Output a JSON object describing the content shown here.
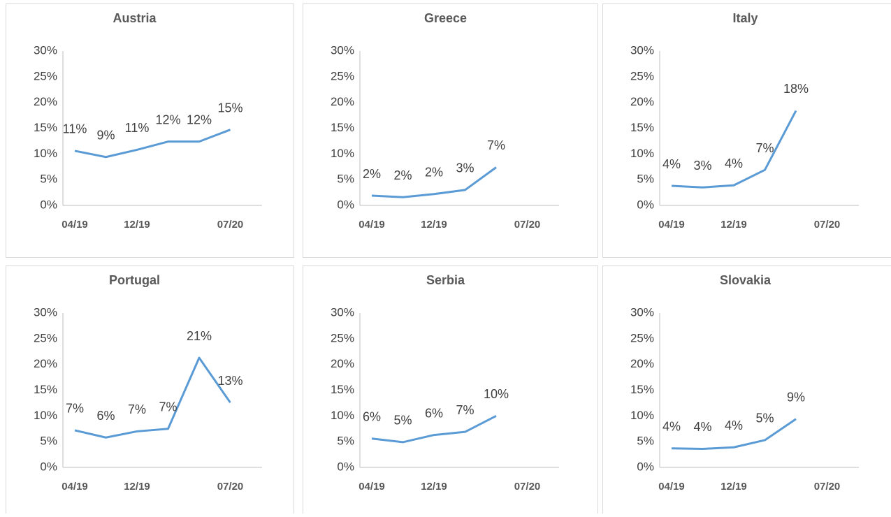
{
  "chart_data": [
    {
      "type": "line",
      "title": "Austria",
      "categories": [
        "04/19",
        null,
        "12/19",
        null,
        null,
        "07/20"
      ],
      "series": [
        {
          "color": "#5b9bd5",
          "values": [
            10.6,
            9.4,
            10.8,
            12.4,
            12.4,
            14.7
          ],
          "value_labels": [
            "11%",
            "9%",
            "11%",
            "12%",
            "12%",
            "15%"
          ]
        }
      ],
      "ylim": [
        0,
        30
      ],
      "yticks": [
        {
          "value": 0,
          "label": "0%"
        },
        {
          "value": 5,
          "label": "5%"
        },
        {
          "value": 10,
          "label": "10%"
        },
        {
          "value": 15,
          "label": "15%"
        },
        {
          "value": 20,
          "label": "20%"
        },
        {
          "value": 25,
          "label": "25%"
        },
        {
          "value": 30,
          "label": "30%"
        }
      ]
    },
    {
      "type": "line",
      "title": "Greece",
      "categories": [
        "04/19",
        null,
        "12/19",
        null,
        null,
        "07/20"
      ],
      "series": [
        {
          "color": "#5b9bd5",
          "values": [
            1.9,
            1.6,
            2.2,
            3.0,
            7.4,
            null
          ],
          "value_labels": [
            "2%",
            "2%",
            "2%",
            "3%",
            "7%",
            null
          ]
        }
      ],
      "ylim": [
        0,
        30
      ],
      "yticks": [
        {
          "value": 0,
          "label": "0%"
        },
        {
          "value": 5,
          "label": "5%"
        },
        {
          "value": 10,
          "label": "10%"
        },
        {
          "value": 15,
          "label": "15%"
        },
        {
          "value": 20,
          "label": "20%"
        },
        {
          "value": 25,
          "label": "25%"
        },
        {
          "value": 30,
          "label": "30%"
        }
      ]
    },
    {
      "type": "line",
      "title": "Italy",
      "categories": [
        "04/19",
        null,
        "12/19",
        null,
        null,
        "07/20"
      ],
      "series": [
        {
          "color": "#5b9bd5",
          "values": [
            3.8,
            3.5,
            3.9,
            6.9,
            18.4,
            null
          ],
          "value_labels": [
            "4%",
            "3%",
            "4%",
            "7%",
            "18%",
            null
          ]
        }
      ],
      "ylim": [
        0,
        30
      ],
      "yticks": [
        {
          "value": 0,
          "label": "0%"
        },
        {
          "value": 5,
          "label": "5%"
        },
        {
          "value": 10,
          "label": "10%"
        },
        {
          "value": 15,
          "label": "15%"
        },
        {
          "value": 20,
          "label": "20%"
        },
        {
          "value": 25,
          "label": "25%"
        },
        {
          "value": 30,
          "label": "30%"
        }
      ]
    },
    {
      "type": "line",
      "title": "Portugal",
      "categories": [
        "04/19",
        null,
        "12/19",
        null,
        null,
        "07/20"
      ],
      "series": [
        {
          "color": "#5b9bd5",
          "values": [
            7.2,
            5.8,
            7.0,
            7.5,
            21.3,
            12.6
          ],
          "value_labels": [
            "7%",
            "6%",
            "7%",
            "7%",
            "21%",
            "13%"
          ]
        }
      ],
      "ylim": [
        0,
        30
      ],
      "yticks": [
        {
          "value": 0,
          "label": "0%"
        },
        {
          "value": 5,
          "label": "5%"
        },
        {
          "value": 10,
          "label": "10%"
        },
        {
          "value": 15,
          "label": "15%"
        },
        {
          "value": 20,
          "label": "20%"
        },
        {
          "value": 25,
          "label": "25%"
        },
        {
          "value": 30,
          "label": "30%"
        }
      ]
    },
    {
      "type": "line",
      "title": "Serbia",
      "categories": [
        "04/19",
        null,
        "12/19",
        null,
        null,
        "07/20"
      ],
      "series": [
        {
          "color": "#5b9bd5",
          "values": [
            5.6,
            4.9,
            6.3,
            6.9,
            10.0,
            null
          ],
          "value_labels": [
            "6%",
            "5%",
            "6%",
            "7%",
            "10%",
            null
          ]
        }
      ],
      "ylim": [
        0,
        30
      ],
      "yticks": [
        {
          "value": 0,
          "label": "0%"
        },
        {
          "value": 5,
          "label": "5%"
        },
        {
          "value": 10,
          "label": "10%"
        },
        {
          "value": 15,
          "label": "15%"
        },
        {
          "value": 20,
          "label": "20%"
        },
        {
          "value": 25,
          "label": "25%"
        },
        {
          "value": 30,
          "label": "30%"
        }
      ]
    },
    {
      "type": "line",
      "title": "Slovakia",
      "categories": [
        "04/19",
        null,
        "12/19",
        null,
        null,
        "07/20"
      ],
      "series": [
        {
          "color": "#5b9bd5",
          "values": [
            3.7,
            3.6,
            3.9,
            5.3,
            9.4,
            null
          ],
          "value_labels": [
            "4%",
            "4%",
            "4%",
            "5%",
            "9%",
            null
          ]
        }
      ],
      "ylim": [
        0,
        30
      ],
      "yticks": [
        {
          "value": 0,
          "label": "0%"
        },
        {
          "value": 5,
          "label": "5%"
        },
        {
          "value": 10,
          "label": "10%"
        },
        {
          "value": 15,
          "label": "15%"
        },
        {
          "value": 20,
          "label": "20%"
        },
        {
          "value": 25,
          "label": "25%"
        },
        {
          "value": 30,
          "label": "30%"
        }
      ]
    }
  ]
}
